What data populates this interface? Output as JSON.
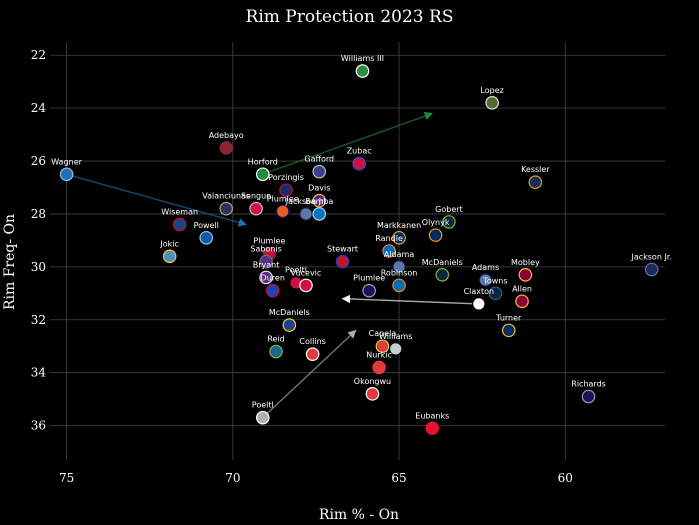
{
  "chart_data": {
    "type": "scatter",
    "title": "Rim Protection 2023 RS",
    "xlabel": "Rim % - On",
    "ylabel": "Rim Freq- On",
    "x_inverted": true,
    "y_inverted": true,
    "xlim": [
      75.5,
      57
    ],
    "ylim": [
      21.5,
      37.3
    ],
    "x_ticks": [
      75,
      70,
      65,
      60
    ],
    "y_ticks": [
      22,
      24,
      26,
      28,
      30,
      32,
      34,
      36
    ],
    "grid": true,
    "points": [
      {
        "name": "Williams III",
        "x": 66.1,
        "y": 22.6,
        "fill": "#2e8b46",
        "edge": "#ffffff",
        "arrow_to": null
      },
      {
        "name": "Lopez",
        "x": 62.2,
        "y": 23.8,
        "fill": "#556b2f",
        "edge": "#dddddd",
        "arrow_to": null
      },
      {
        "name": "Adebayo",
        "x": 70.2,
        "y": 25.5,
        "fill": "#8b2232",
        "edge": "#8b2232",
        "arrow_to": null
      },
      {
        "name": "Wagner",
        "x": 75.0,
        "y": 26.5,
        "fill": "#1f6fb2",
        "edge": "#8fbfe0",
        "arrow_to": [
          69.6,
          28.4
        ]
      },
      {
        "name": "Horford",
        "x": 69.1,
        "y": 26.5,
        "fill": "#1f8b3a",
        "edge": "#ffffff",
        "arrow_to": [
          64.0,
          24.2
        ]
      },
      {
        "name": "Gafford",
        "x": 67.4,
        "y": 26.4,
        "fill": "#3a3f8f",
        "edge": "#c0c0c0",
        "arrow_to": null
      },
      {
        "name": "Zubac",
        "x": 66.2,
        "y": 26.1,
        "fill": "#cf1040",
        "edge": "#3050c0",
        "arrow_to": null
      },
      {
        "name": "Kessler",
        "x": 60.9,
        "y": 26.8,
        "fill": "#1d2a5a",
        "edge": "#d4a020",
        "arrow_to": null
      },
      {
        "name": "Porzingis",
        "x": 68.4,
        "y": 27.1,
        "fill": "#1a2a6c",
        "edge": "#c0103a",
        "arrow_to": null
      },
      {
        "name": "Davis",
        "x": 67.4,
        "y": 27.5,
        "fill": "#552583",
        "edge": "#fdb927",
        "arrow_to": null
      },
      {
        "name": "Valanciunas",
        "x": 70.2,
        "y": 27.8,
        "fill": "#2a3060",
        "edge": "#b0a070",
        "arrow_to": null
      },
      {
        "name": "Sengun",
        "x": 69.3,
        "y": 27.8,
        "fill": "#ce1141",
        "edge": "#c0c0c0",
        "arrow_to": null
      },
      {
        "name": "Plumlee",
        "x": 68.5,
        "y": 27.9,
        "fill": "#e56020",
        "edge": "#1d1160",
        "arrow_to": null
      },
      {
        "name": "Jackson Jr.",
        "x": 67.8,
        "y": 28.0,
        "fill": "#5d76a9",
        "edge": "#12173f",
        "arrow_to": null
      },
      {
        "name": "Bamba",
        "x": 67.4,
        "y": 28.0,
        "fill": "#0077c0",
        "edge": "#c4ced4",
        "arrow_to": null
      },
      {
        "name": "Gobert",
        "x": 63.5,
        "y": 28.3,
        "fill": "#0c2340",
        "edge": "#78be20",
        "arrow_to": null
      },
      {
        "name": "Wiseman",
        "x": 71.6,
        "y": 28.4,
        "fill": "#1d428a",
        "edge": "#c8102e",
        "arrow_to": null
      },
      {
        "name": "Olynyk",
        "x": 63.9,
        "y": 28.8,
        "fill": "#002b5c",
        "edge": "#f9a01b",
        "arrow_to": null
      },
      {
        "name": "Powell",
        "x": 70.8,
        "y": 28.9,
        "fill": "#0c5aa8",
        "edge": "#a0c0e0",
        "arrow_to": null
      },
      {
        "name": "Markkanen",
        "x": 65.0,
        "y": 28.9,
        "fill": "#002b5c",
        "edge": "#f9a01b",
        "arrow_to": null
      },
      {
        "name": "Randle",
        "x": 65.3,
        "y": 29.4,
        "fill": "#006bb6",
        "edge": "#f58426",
        "arrow_to": null
      },
      {
        "name": "Plumlee",
        "x": 68.9,
        "y": 29.5,
        "fill": "#c8102e",
        "edge": "#1d428a",
        "arrow_to": null
      },
      {
        "name": "Jokic",
        "x": 71.9,
        "y": 29.6,
        "fill": "#4a90c0",
        "edge": "#fec524",
        "arrow_to": null
      },
      {
        "name": "Sabonis",
        "x": 69.0,
        "y": 29.8,
        "fill": "#5a2d81",
        "edge": "#63727a",
        "arrow_to": null
      },
      {
        "name": "Stewart",
        "x": 66.7,
        "y": 29.8,
        "fill": "#c8102e",
        "edge": "#1d42ba",
        "arrow_to": null
      },
      {
        "name": "Aldama",
        "x": 65.0,
        "y": 30.0,
        "fill": "#5d76a9",
        "edge": "#12173f",
        "arrow_to": null
      },
      {
        "name": "Jackson Jr.",
        "x": 57.4,
        "y": 30.1,
        "fill": "#1d2a5a",
        "edge": "#5d76a9",
        "arrow_to": null
      },
      {
        "name": "Mobley",
        "x": 61.2,
        "y": 30.3,
        "fill": "#860038",
        "edge": "#fdbb30",
        "arrow_to": null
      },
      {
        "name": "McDaniels",
        "x": 63.7,
        "y": 30.3,
        "fill": "#0c2340",
        "edge": "#78be20",
        "arrow_to": null
      },
      {
        "name": "Bryant",
        "x": 69.0,
        "y": 30.4,
        "fill": "#5a2d81",
        "edge": "#e0e0e0",
        "arrow_to": null
      },
      {
        "name": "Poeltl",
        "x": 68.1,
        "y": 30.6,
        "fill": "#ce1141",
        "edge": "#000000",
        "arrow_to": null
      },
      {
        "name": "Vucevic",
        "x": 67.8,
        "y": 30.7,
        "fill": "#ce1141",
        "edge": "#ffffff",
        "arrow_to": null
      },
      {
        "name": "Adams",
        "x": 62.4,
        "y": 30.5,
        "fill": "#5d76a9",
        "edge": "#12173f",
        "arrow_to": null
      },
      {
        "name": "Robinson",
        "x": 65.0,
        "y": 30.7,
        "fill": "#006bb6",
        "edge": "#f58426",
        "arrow_to": null
      },
      {
        "name": "Duren",
        "x": 68.8,
        "y": 30.9,
        "fill": "#1d42ba",
        "edge": "#c8102e",
        "arrow_to": null
      },
      {
        "name": "Plumlee",
        "x": 65.9,
        "y": 30.9,
        "fill": "#1d1160",
        "edge": "#a1a1a4",
        "arrow_to": null
      },
      {
        "name": "Towns",
        "x": 62.1,
        "y": 31.0,
        "fill": "#0c2340",
        "edge": "#236192",
        "arrow_to": null
      },
      {
        "name": "Claxton",
        "x": 62.6,
        "y": 31.4,
        "fill": "#ffffff",
        "edge": "#000000",
        "arrow_to": [
          66.7,
          31.2
        ]
      },
      {
        "name": "Allen",
        "x": 61.3,
        "y": 31.3,
        "fill": "#860038",
        "edge": "#fdbb30",
        "arrow_to": null
      },
      {
        "name": "McDaniels",
        "x": 68.3,
        "y": 32.2,
        "fill": "#1d428a",
        "edge": "#ffc72c",
        "arrow_to": null
      },
      {
        "name": "Turner",
        "x": 61.7,
        "y": 32.4,
        "fill": "#002d62",
        "edge": "#fdbb30",
        "arrow_to": null
      },
      {
        "name": "Reid",
        "x": 68.7,
        "y": 33.2,
        "fill": "#236192",
        "edge": "#78be20",
        "arrow_to": null
      },
      {
        "name": "Collins",
        "x": 67.6,
        "y": 33.3,
        "fill": "#e03a3e",
        "edge": "#ffffff",
        "arrow_to": null
      },
      {
        "name": "Capela",
        "x": 65.5,
        "y": 33.0,
        "fill": "#e03a3e",
        "edge": "#c1d32f",
        "arrow_to": null
      },
      {
        "name": "Williams",
        "x": 65.1,
        "y": 33.1,
        "fill": "#c4ced4",
        "edge": "#000000",
        "arrow_to": null
      },
      {
        "name": "Nurkic",
        "x": 65.6,
        "y": 33.8,
        "fill": "#e03a3e",
        "edge": "#e03a3e",
        "arrow_to": null
      },
      {
        "name": "Richards",
        "x": 59.3,
        "y": 34.9,
        "fill": "#1d1160",
        "edge": "#a1a1a4",
        "arrow_to": null
      },
      {
        "name": "Okongwu",
        "x": 65.8,
        "y": 34.8,
        "fill": "#e03a3e",
        "edge": "#ffffff",
        "arrow_to": null
      },
      {
        "name": "Poeltl",
        "x": 69.1,
        "y": 35.7,
        "fill": "#b0b0b0",
        "edge": "#ffffff",
        "arrow_to": [
          66.3,
          32.4
        ]
      },
      {
        "name": "Eubanks",
        "x": 64.0,
        "y": 36.1,
        "fill": "#e8102e",
        "edge": "#e8102e",
        "arrow_to": null
      }
    ]
  }
}
